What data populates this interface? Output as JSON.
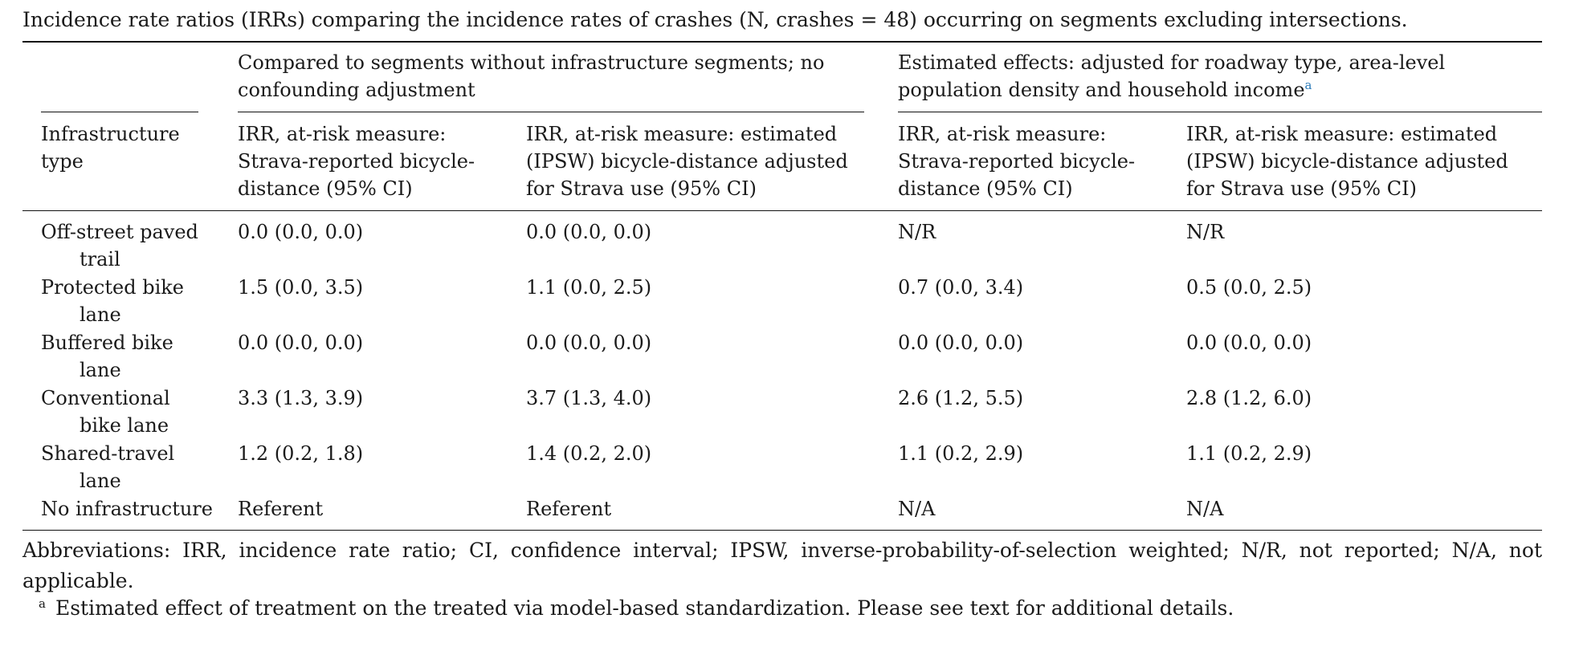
{
  "caption": "Incidence rate ratios (IRRs) comparing the incidence rates of crashes (N, crashes = 48) occurring on segments excluding intersections.",
  "table": {
    "group_headers": [
      {
        "label": "Compared to segments without infrastructure segments; no confounding adjustment",
        "footnote": ""
      },
      {
        "label": "Estimated effects: adjusted for roadway type, area-level population density and household income",
        "footnote": "a"
      }
    ],
    "column_headers": [
      "Infrastructure type",
      "IRR, at-risk measure: Strava-reported bicycle-distance (95% CI)",
      "IRR, at-risk measure: estimated (IPSW) bicycle-distance adjusted for Strava use (95% CI)",
      "IRR, at-risk measure: Strava-reported bicycle-distance (95% CI)",
      "IRR, at-risk measure: estimated (IPSW) bicycle-distance adjusted for Strava use (95% CI)"
    ],
    "rows": [
      {
        "type_line1": "Off-street paved",
        "type_line2": "trail",
        "values": [
          "0.0 (0.0, 0.0)",
          "0.0 (0.0, 0.0)",
          "N/R",
          "N/R"
        ]
      },
      {
        "type_line1": "Protected bike",
        "type_line2": "lane",
        "values": [
          "1.5 (0.0, 3.5)",
          "1.1 (0.0, 2.5)",
          "0.7 (0.0, 3.4)",
          "0.5 (0.0, 2.5)"
        ]
      },
      {
        "type_line1": "Buffered bike",
        "type_line2": "lane",
        "values": [
          "0.0 (0.0, 0.0)",
          "0.0 (0.0, 0.0)",
          "0.0 (0.0, 0.0)",
          "0.0 (0.0, 0.0)"
        ]
      },
      {
        "type_line1": "Conventional",
        "type_line2": "bike lane",
        "values": [
          "3.3 (1.3, 3.9)",
          "3.7 (1.3, 4.0)",
          "2.6 (1.2, 5.5)",
          "2.8 (1.2, 6.0)"
        ]
      },
      {
        "type_line1": "Shared-travel",
        "type_line2": "lane",
        "values": [
          "1.2 (0.2, 1.8)",
          "1.4 (0.2, 2.0)",
          "1.1 (0.2, 2.9)",
          "1.1 (0.2, 2.9)"
        ]
      },
      {
        "type_line1": "No infrastructure",
        "type_line2": "",
        "values": [
          "Referent",
          "Referent",
          "N/A",
          "N/A"
        ]
      }
    ]
  },
  "abbreviations": "Abbreviations: IRR, incidence rate ratio; CI, confidence interval; IPSW, inverse-probability-of-selection weighted; N/R, not reported; N/A, not applicable.",
  "footnote": {
    "marker": "a",
    "text": "Estimated effect of treatment on the treated via model-based standardization. Please see text for additional details."
  }
}
